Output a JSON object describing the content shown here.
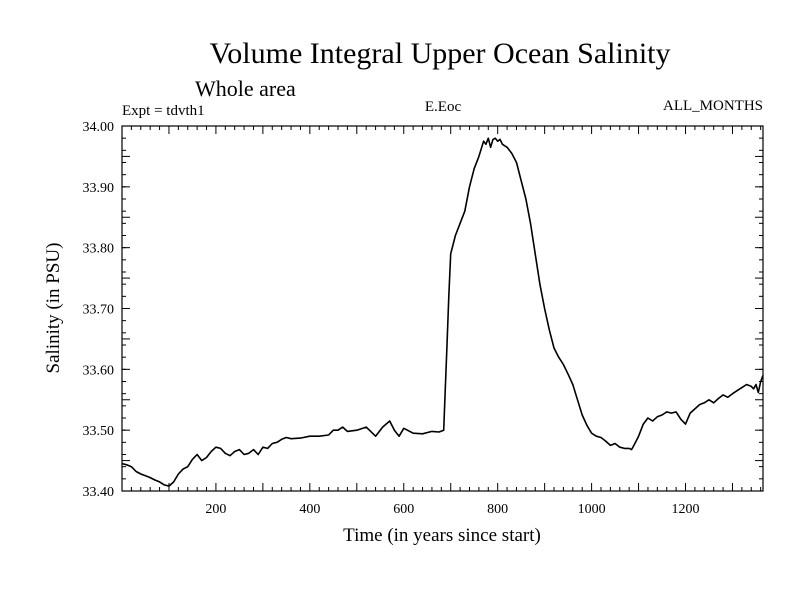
{
  "chart_data": {
    "type": "line",
    "title": "Volume Integral Upper Ocean Salinity",
    "subtitle": "Whole area",
    "expt_label": "Expt = tdvth1",
    "variable_label": "E.Eoc",
    "months_label": "ALL_MONTHS",
    "xlabel": "Time (in years since start)",
    "ylabel": "Salinity (in PSU)",
    "xlim": [
      0,
      1365
    ],
    "ylim": [
      33.4,
      34.0
    ],
    "xticks": [
      200,
      400,
      600,
      800,
      1000,
      1200
    ],
    "xtick_labels": [
      "200",
      "400",
      "600",
      "800",
      "1000",
      "1200"
    ],
    "yticks": [
      33.4,
      33.5,
      33.6,
      33.7,
      33.8,
      33.9,
      34.0
    ],
    "ytick_labels": [
      "33.40",
      "33.50",
      "33.60",
      "33.70",
      "33.80",
      "33.90",
      "34.00"
    ],
    "grid": false,
    "series": [
      {
        "name": "Salinity",
        "x": [
          0,
          10,
          20,
          30,
          40,
          50,
          60,
          70,
          80,
          90,
          100,
          110,
          120,
          130,
          140,
          150,
          160,
          170,
          180,
          190,
          200,
          210,
          220,
          230,
          240,
          250,
          260,
          270,
          280,
          290,
          300,
          310,
          320,
          330,
          340,
          350,
          360,
          380,
          400,
          420,
          440,
          450,
          460,
          470,
          480,
          500,
          520,
          540,
          555,
          570,
          580,
          590,
          600,
          620,
          640,
          660,
          675,
          685,
          688,
          692,
          696,
          700,
          710,
          720,
          730,
          740,
          750,
          760,
          770,
          775,
          780,
          785,
          790,
          795,
          800,
          805,
          810,
          820,
          830,
          840,
          850,
          860,
          870,
          880,
          890,
          900,
          910,
          920,
          930,
          940,
          950,
          960,
          970,
          980,
          990,
          1000,
          1010,
          1020,
          1030,
          1040,
          1050,
          1060,
          1070,
          1080,
          1085,
          1090,
          1100,
          1110,
          1120,
          1130,
          1140,
          1150,
          1160,
          1170,
          1180,
          1190,
          1200,
          1210,
          1220,
          1230,
          1240,
          1250,
          1260,
          1270,
          1280,
          1290,
          1300,
          1310,
          1320,
          1330,
          1340,
          1345,
          1350,
          1355,
          1360,
          1365
        ],
        "values": [
          33.445,
          33.443,
          33.44,
          33.432,
          33.428,
          33.425,
          33.422,
          33.418,
          33.415,
          33.41,
          33.408,
          33.415,
          33.428,
          33.436,
          33.44,
          33.452,
          33.46,
          33.45,
          33.455,
          33.465,
          33.472,
          33.47,
          33.462,
          33.458,
          33.465,
          33.468,
          33.46,
          33.462,
          33.468,
          33.46,
          33.472,
          33.47,
          33.478,
          33.48,
          33.485,
          33.488,
          33.486,
          33.487,
          33.49,
          33.49,
          33.492,
          33.5,
          33.5,
          33.505,
          33.498,
          33.5,
          33.505,
          33.49,
          33.505,
          33.515,
          33.5,
          33.49,
          33.503,
          33.495,
          33.494,
          33.498,
          33.497,
          33.5,
          33.56,
          33.64,
          33.72,
          33.79,
          33.82,
          33.84,
          33.86,
          33.9,
          33.93,
          33.95,
          33.975,
          33.97,
          33.98,
          33.965,
          33.978,
          33.98,
          33.975,
          33.978,
          33.97,
          33.965,
          33.955,
          33.94,
          33.91,
          33.88,
          33.84,
          33.79,
          33.74,
          33.7,
          33.665,
          33.635,
          33.62,
          33.608,
          33.592,
          33.575,
          33.55,
          33.525,
          33.508,
          33.495,
          33.49,
          33.488,
          33.482,
          33.475,
          33.478,
          33.472,
          33.47,
          33.47,
          33.468,
          33.475,
          33.49,
          33.51,
          33.52,
          33.515,
          33.522,
          33.525,
          33.53,
          33.528,
          33.53,
          33.518,
          33.51,
          33.528,
          33.535,
          33.542,
          33.545,
          33.55,
          33.545,
          33.552,
          33.558,
          33.554,
          33.56,
          33.565,
          33.57,
          33.575,
          33.572,
          33.568,
          33.575,
          33.562,
          33.58,
          33.59
        ]
      }
    ]
  }
}
